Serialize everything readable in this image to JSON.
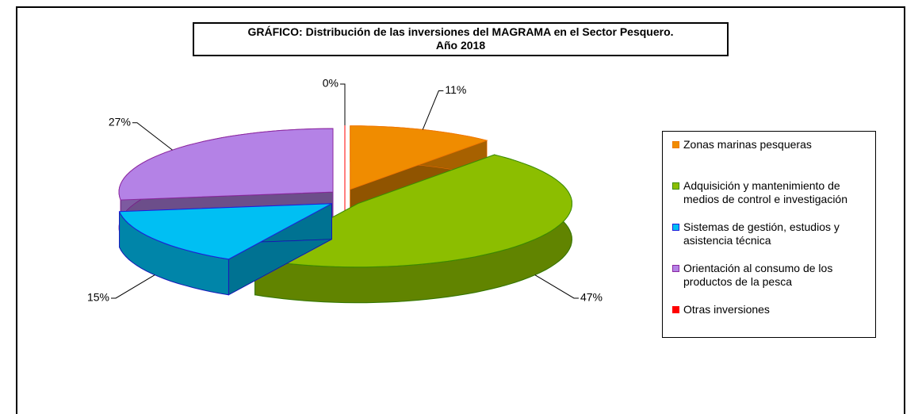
{
  "chart_data": {
    "type": "pie",
    "title": "GRÁFICO: Distribución de las inversiones del MAGRAMA en el Sector Pesquero.\nAño 2018",
    "categories": [
      "Zonas marinas pesqueras",
      "Adquisición y mantenimiento de medios de control e investigación",
      "Sistemas de gestión, estudios y asistencia técnica",
      "Orientación al consumo de los productos de la pesca",
      "Otras inversiones"
    ],
    "values": [
      11,
      47,
      15,
      27,
      0
    ],
    "value_labels": [
      "11%",
      "47%",
      "15%",
      "27%",
      "0%"
    ],
    "colors": [
      "#f08c00",
      "#8cbe00",
      "#00bff3",
      "#b482e6",
      "#ff0000"
    ],
    "edge_colors": [
      "#f07800",
      "#3c8c00",
      "#1e1edc",
      "#8c28a0",
      "#ff0000"
    ],
    "legend": "right"
  }
}
